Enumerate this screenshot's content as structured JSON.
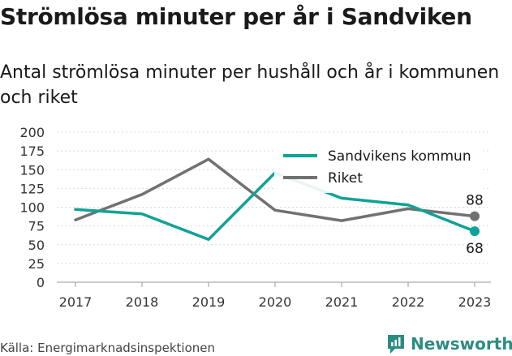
{
  "title": "Strömlösa minuter per år i Sandviken",
  "subtitle": "Antal strömlösa minuter per hushåll och år i kommunen och riket",
  "source": "Källa: Energimarknadsinspektionen",
  "brand": {
    "name": "Newsworthy",
    "icon": "newsworthy-logo-icon"
  },
  "chart_data": {
    "type": "line",
    "x": [
      "2017",
      "2018",
      "2019",
      "2020",
      "2021",
      "2022",
      "2023"
    ],
    "ylim": [
      0,
      200
    ],
    "yticks": [
      0,
      25,
      50,
      75,
      100,
      125,
      150,
      175,
      200
    ],
    "grid": true,
    "legend_position": "top-right",
    "series": [
      {
        "name": "Sandvikens kommun",
        "color": "#0fa298",
        "values": [
          97,
          91,
          57,
          146,
          112,
          103,
          68
        ],
        "end_label": "68"
      },
      {
        "name": "Riket",
        "color": "#717171",
        "values": [
          83,
          117,
          164,
          96,
          82,
          98,
          88
        ],
        "end_label": "88"
      }
    ]
  }
}
